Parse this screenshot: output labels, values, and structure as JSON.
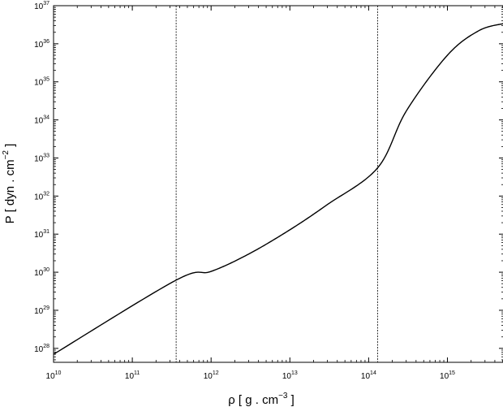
{
  "chart_data": {
    "type": "line",
    "title": "",
    "xlabel": {
      "prefix": "ρ  [  g . cm",
      "exponent": "−3",
      "suffix": "  ]"
    },
    "ylabel": {
      "prefix": "P  [  dyn . cm",
      "exponent": "−2",
      "suffix": "  ]"
    },
    "x_scale": "log",
    "y_scale": "log",
    "xlim": [
      10000000000.0,
      5200000000000000.0
    ],
    "ylim": [
      4.3e+27,
      1e+37
    ],
    "x_ticks": [
      {
        "base": "10",
        "exp": "10",
        "value": 10000000000.0
      },
      {
        "base": "10",
        "exp": "11",
        "value": 100000000000.0
      },
      {
        "base": "10",
        "exp": "12",
        "value": 1000000000000.0
      },
      {
        "base": "10",
        "exp": "13",
        "value": 10000000000000.0
      },
      {
        "base": "10",
        "exp": "14",
        "value": 100000000000000.0
      },
      {
        "base": "10",
        "exp": "15",
        "value": 1000000000000000.0
      }
    ],
    "y_ticks": [
      {
        "base": "10",
        "exp": "28",
        "value": 1e+28
      },
      {
        "base": "10",
        "exp": "29",
        "value": 1e+29
      },
      {
        "base": "10",
        "exp": "30",
        "value": 1e+30
      },
      {
        "base": "10",
        "exp": "31",
        "value": 1e+31
      },
      {
        "base": "10",
        "exp": "32",
        "value": 1e+32
      },
      {
        "base": "10",
        "exp": "33",
        "value": 1e+33
      },
      {
        "base": "10",
        "exp": "34",
        "value": 1e+34
      },
      {
        "base": "10",
        "exp": "35",
        "value": 1e+35
      },
      {
        "base": "10",
        "exp": "36",
        "value": 1e+36
      },
      {
        "base": "10",
        "exp": "37",
        "value": 1e+37
      }
    ],
    "vertical_lines": [
      360000000000.0,
      130000000000000.0
    ],
    "grid": false,
    "series": [
      {
        "color": "#000000",
        "x": [
          10000000000.0,
          360000000000.0,
          1000000000000.0,
          3000000000000.0,
          10000000000000.0,
          30000000000000.0,
          130000000000000.0,
          300000000000000.0,
          1000000000000000.0,
          2500000000000000.0,
          5200000000000000.0
        ],
        "y": [
          7e+27,
          6.2e+29,
          1.05e+30,
          3e+30,
          1.3e+31,
          6e+31,
          5.5e+32,
          1.7e+34,
          5e+35,
          2.2e+36,
          3.4e+36
        ]
      }
    ]
  }
}
